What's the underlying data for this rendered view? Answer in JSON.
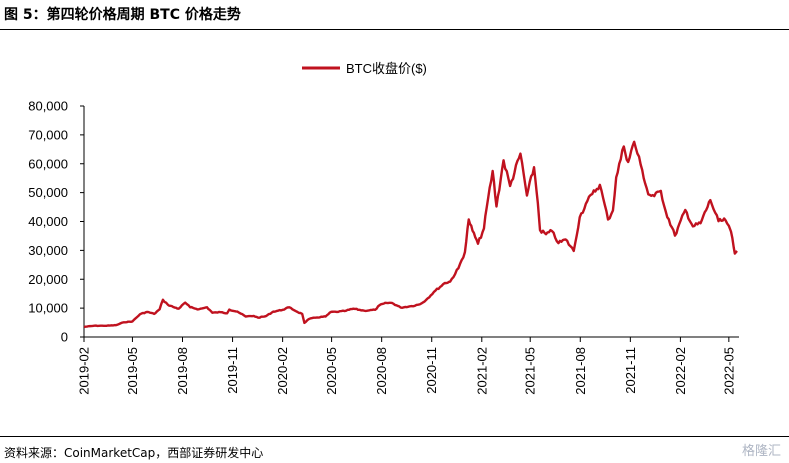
{
  "header": {
    "title": "图 5：第四轮价格周期 BTC 价格走势"
  },
  "footer": {
    "source": "资料来源：CoinMarketCap，西部证券研发中心",
    "watermark": "格隆汇"
  },
  "chart_data": {
    "type": "line",
    "title": "",
    "xlabel": "",
    "ylabel": "",
    "ylim": [
      0,
      80000
    ],
    "y_ticks": [
      0,
      10000,
      20000,
      30000,
      40000,
      50000,
      60000,
      70000,
      80000
    ],
    "y_tick_labels": [
      "0",
      "10,000",
      "20,000",
      "30,000",
      "40,000",
      "50,000",
      "60,000",
      "70,000",
      "80,000"
    ],
    "x_tick_labels": [
      "2019-02",
      "2019-05",
      "2019-08",
      "2019-11",
      "2020-02",
      "2020-05",
      "2020-08",
      "2020-11",
      "2021-02",
      "2021-05",
      "2021-08",
      "2021-11",
      "2022-02",
      "2022-05"
    ],
    "x_range": [
      "2019-02-01",
      "2022-05-16"
    ],
    "grid": false,
    "legend_position": "top-center",
    "color": "#c0121f",
    "series": [
      {
        "name": "BTC收盘价($)",
        "points": [
          [
            "2019-02-01",
            3500
          ],
          [
            "2019-02-20",
            3900
          ],
          [
            "2019-03-15",
            3900
          ],
          [
            "2019-04-01",
            4100
          ],
          [
            "2019-04-15",
            5100
          ],
          [
            "2019-05-01",
            5400
          ],
          [
            "2019-05-15",
            7900
          ],
          [
            "2019-05-28",
            8700
          ],
          [
            "2019-06-10",
            8000
          ],
          [
            "2019-06-20",
            9600
          ],
          [
            "2019-06-26",
            12900
          ],
          [
            "2019-07-05",
            11200
          ],
          [
            "2019-07-15",
            10400
          ],
          [
            "2019-07-25",
            9800
          ],
          [
            "2019-08-06",
            11900
          ],
          [
            "2019-08-15",
            10300
          ],
          [
            "2019-08-31",
            9600
          ],
          [
            "2019-09-15",
            10300
          ],
          [
            "2019-09-25",
            8400
          ],
          [
            "2019-10-10",
            8600
          ],
          [
            "2019-10-22",
            8200
          ],
          [
            "2019-10-26",
            9500
          ],
          [
            "2019-11-10",
            8800
          ],
          [
            "2019-11-25",
            7100
          ],
          [
            "2019-12-10",
            7300
          ],
          [
            "2019-12-18",
            6700
          ],
          [
            "2020-01-01",
            7200
          ],
          [
            "2020-01-15",
            8800
          ],
          [
            "2020-02-01",
            9400
          ],
          [
            "2020-02-13",
            10300
          ],
          [
            "2020-02-28",
            8700
          ],
          [
            "2020-03-08",
            8000
          ],
          [
            "2020-03-12",
            4900
          ],
          [
            "2020-03-20",
            6200
          ],
          [
            "2020-04-01",
            6700
          ],
          [
            "2020-04-20",
            7100
          ],
          [
            "2020-04-30",
            8700
          ],
          [
            "2020-05-10",
            8700
          ],
          [
            "2020-05-25",
            9000
          ],
          [
            "2020-06-10",
            9800
          ],
          [
            "2020-06-30",
            9100
          ],
          [
            "2020-07-20",
            9400
          ],
          [
            "2020-07-28",
            11000
          ],
          [
            "2020-08-10",
            11800
          ],
          [
            "2020-08-20",
            11800
          ],
          [
            "2020-09-05",
            10200
          ],
          [
            "2020-09-25",
            10700
          ],
          [
            "2020-10-10",
            11300
          ],
          [
            "2020-10-22",
            12900
          ],
          [
            "2020-11-05",
            15600
          ],
          [
            "2020-11-25",
            18700
          ],
          [
            "2020-12-05",
            19200
          ],
          [
            "2020-12-20",
            23800
          ],
          [
            "2021-01-01",
            29400
          ],
          [
            "2021-01-08",
            40700
          ],
          [
            "2021-01-15",
            36800
          ],
          [
            "2021-01-25",
            32300
          ],
          [
            "2021-02-05",
            37600
          ],
          [
            "2021-02-10",
            44800
          ],
          [
            "2021-02-21",
            57500
          ],
          [
            "2021-02-28",
            45200
          ],
          [
            "2021-03-13",
            61200
          ],
          [
            "2021-03-25",
            52300
          ],
          [
            "2021-04-13",
            63500
          ],
          [
            "2021-04-25",
            49000
          ],
          [
            "2021-05-08",
            58800
          ],
          [
            "2021-05-15",
            46400
          ],
          [
            "2021-05-19",
            37000
          ],
          [
            "2021-05-30",
            35600
          ],
          [
            "2021-06-10",
            36700
          ],
          [
            "2021-06-22",
            32500
          ],
          [
            "2021-07-05",
            33800
          ],
          [
            "2021-07-20",
            29800
          ],
          [
            "2021-07-31",
            41500
          ],
          [
            "2021-08-14",
            47100
          ],
          [
            "2021-08-23",
            49500
          ],
          [
            "2021-09-06",
            52700
          ],
          [
            "2021-09-21",
            40700
          ],
          [
            "2021-09-30",
            43800
          ],
          [
            "2021-10-06",
            55300
          ],
          [
            "2021-10-20",
            66000
          ],
          [
            "2021-10-28",
            60600
          ],
          [
            "2021-11-08",
            67600
          ],
          [
            "2021-11-20",
            59700
          ],
          [
            "2021-12-04",
            49400
          ],
          [
            "2021-12-15",
            48800
          ],
          [
            "2021-12-27",
            50600
          ],
          [
            "2022-01-05",
            43500
          ],
          [
            "2022-01-22",
            35100
          ],
          [
            "2022-02-10",
            44000
          ],
          [
            "2022-02-24",
            38300
          ],
          [
            "2022-03-10",
            39400
          ],
          [
            "2022-03-28",
            47400
          ],
          [
            "2022-04-12",
            40100
          ],
          [
            "2022-04-25",
            40400
          ],
          [
            "2022-05-01",
            38500
          ],
          [
            "2022-05-05",
            36500
          ],
          [
            "2022-05-10",
            31000
          ],
          [
            "2022-05-12",
            28900
          ],
          [
            "2022-05-16",
            29800
          ]
        ]
      }
    ]
  }
}
